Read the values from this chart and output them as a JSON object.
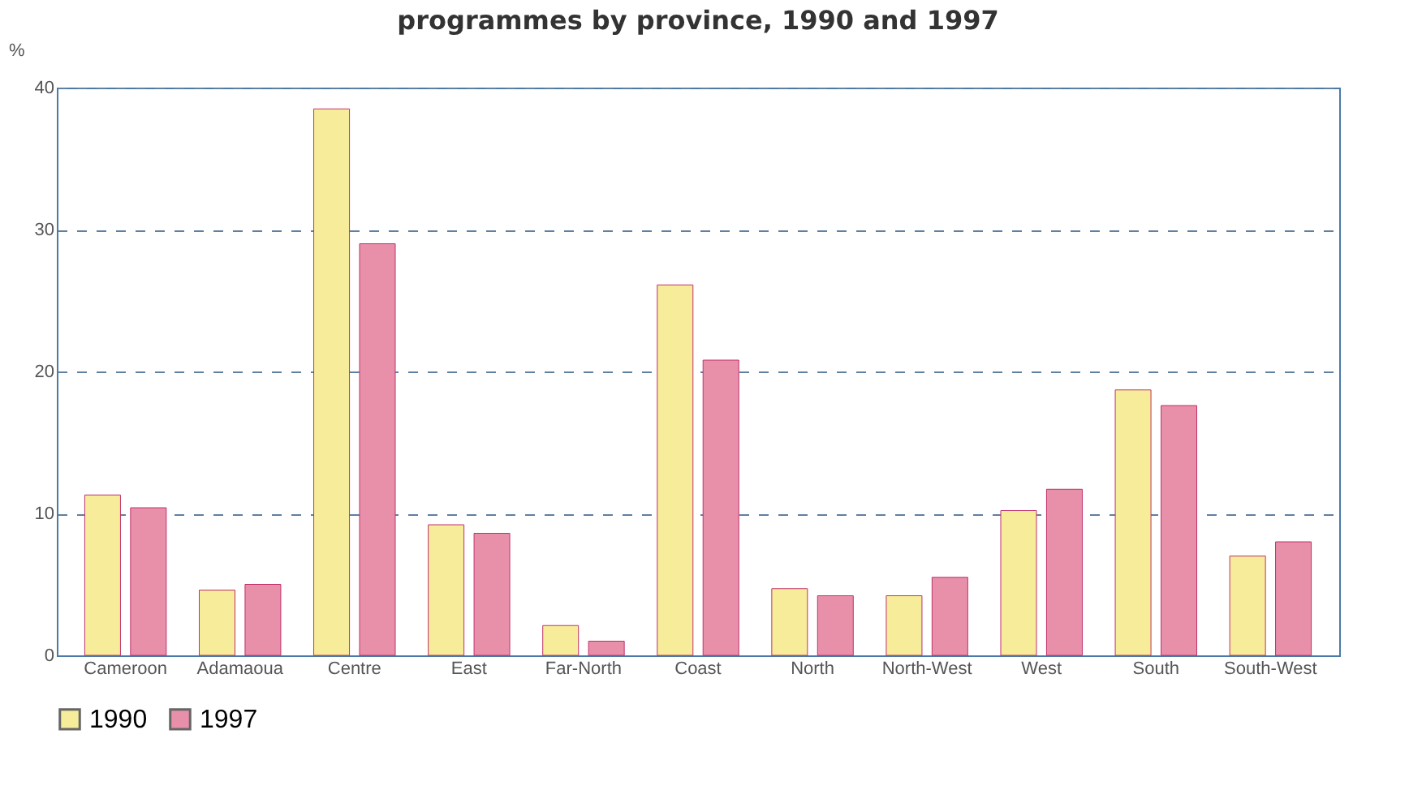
{
  "chart_data": {
    "type": "bar",
    "title": "programmes by province, 1990 and 1997",
    "ylabel": "%",
    "categories": [
      "Cameroon",
      "Adamaoua",
      "Centre",
      "East",
      "Far-North",
      "Coast",
      "North",
      "North-West",
      "West",
      "South",
      "South-West"
    ],
    "series": [
      {
        "name": "1990",
        "color": "#f7ec9a",
        "values": [
          11.3,
          4.6,
          38.5,
          9.2,
          2.1,
          26.1,
          4.7,
          4.2,
          10.2,
          18.7,
          7.0
        ]
      },
      {
        "name": "1997",
        "color": "#e890aa",
        "values": [
          10.4,
          5.0,
          29.0,
          8.6,
          1.0,
          20.8,
          4.2,
          5.5,
          11.7,
          17.6,
          8.0
        ]
      }
    ],
    "ylim": [
      0,
      40
    ],
    "yticks": [
      0,
      10,
      20,
      30,
      40
    ],
    "grid": "y",
    "line_style": "dashed",
    "legend": "bottom"
  }
}
